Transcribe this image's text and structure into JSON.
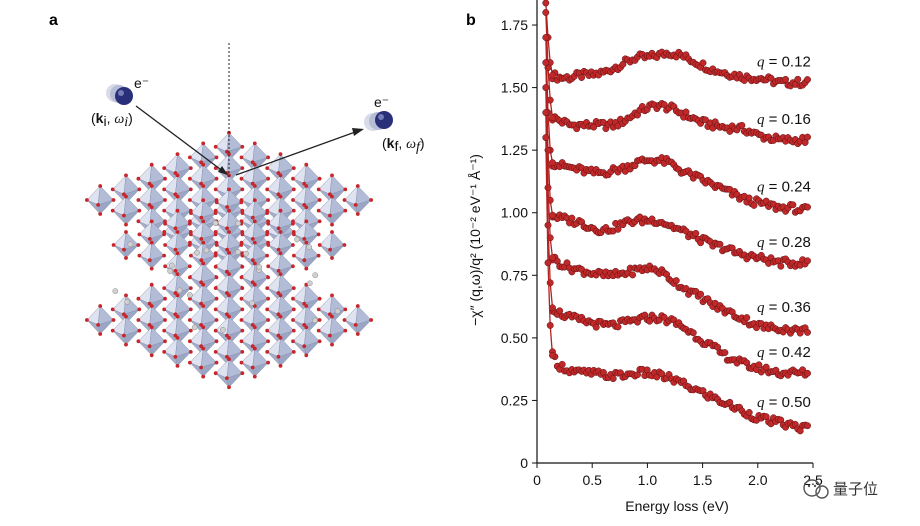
{
  "panels": {
    "a": "a",
    "b": "b"
  },
  "illustration": {
    "electron_in": "e⁻",
    "electron_out": "e⁻",
    "k_in": "k",
    "k_in_sub": "i",
    "w_in": "ω",
    "w_in_sub": "i",
    "k_out": "k",
    "k_out_sub": "f",
    "w_out": "ω",
    "w_out_sub": "f",
    "octahedron_color": "#9ba6c4",
    "oxygen_color": "#c8262a",
    "electron_color": "#2a2f7a"
  },
  "watermark": "量子位",
  "chart_data": {
    "type": "scatter",
    "xlabel": "Energy loss (eV)",
    "ylabel": "−χ″ (q,ω)/q² (10⁻² eV⁻¹ Å⁻¹)",
    "xlim": [
      0,
      2.5
    ],
    "ylim": [
      0,
      1.85
    ],
    "xticks": [
      0,
      0.5,
      1.0,
      1.5,
      2.0,
      2.5
    ],
    "xtick_labels": [
      "0",
      "0.5",
      "1.0",
      "1.5",
      "2.0",
      "2.5"
    ],
    "yticks": [
      0,
      0.25,
      0.5,
      0.75,
      1.0,
      1.25,
      1.5,
      1.75
    ],
    "ytick_labels": [
      "0",
      "0.25",
      "0.50",
      "0.75",
      "1.00",
      "1.25",
      "1.50",
      "1.75"
    ],
    "marker_color": "#c0282a",
    "line_color": "#b32020",
    "series": [
      {
        "name": "q = 0.12",
        "label": "0.12",
        "points": [
          [
            0.08,
            1.88
          ],
          [
            0.1,
            1.7
          ],
          [
            0.12,
            1.6
          ],
          [
            0.14,
            1.55
          ],
          [
            0.2,
            1.54
          ],
          [
            0.3,
            1.54
          ],
          [
            0.4,
            1.55
          ],
          [
            0.5,
            1.55
          ],
          [
            0.6,
            1.56
          ],
          [
            0.7,
            1.58
          ],
          [
            0.8,
            1.6
          ],
          [
            0.9,
            1.62
          ],
          [
            1.0,
            1.62
          ],
          [
            1.1,
            1.63
          ],
          [
            1.2,
            1.64
          ],
          [
            1.3,
            1.63
          ],
          [
            1.4,
            1.61
          ],
          [
            1.5,
            1.59
          ],
          [
            1.6,
            1.57
          ],
          [
            1.7,
            1.56
          ],
          [
            1.8,
            1.55
          ],
          [
            1.9,
            1.54
          ],
          [
            2.0,
            1.54
          ],
          [
            2.1,
            1.53
          ],
          [
            2.2,
            1.52
          ],
          [
            2.3,
            1.52
          ],
          [
            2.4,
            1.52
          ],
          [
            2.46,
            1.52
          ]
        ]
      },
      {
        "name": "q = 0.16",
        "label": "0.16",
        "points": [
          [
            0.08,
            1.8
          ],
          [
            0.1,
            1.58
          ],
          [
            0.12,
            1.45
          ],
          [
            0.14,
            1.38
          ],
          [
            0.2,
            1.37
          ],
          [
            0.3,
            1.35
          ],
          [
            0.4,
            1.35
          ],
          [
            0.5,
            1.35
          ],
          [
            0.6,
            1.35
          ],
          [
            0.7,
            1.35
          ],
          [
            0.8,
            1.37
          ],
          [
            0.9,
            1.4
          ],
          [
            1.0,
            1.42
          ],
          [
            1.1,
            1.43
          ],
          [
            1.2,
            1.42
          ],
          [
            1.3,
            1.4
          ],
          [
            1.4,
            1.38
          ],
          [
            1.5,
            1.36
          ],
          [
            1.6,
            1.35
          ],
          [
            1.7,
            1.34
          ],
          [
            1.8,
            1.34
          ],
          [
            1.9,
            1.33
          ],
          [
            2.0,
            1.31
          ],
          [
            2.1,
            1.3
          ],
          [
            2.2,
            1.29
          ],
          [
            2.3,
            1.29
          ],
          [
            2.4,
            1.29
          ],
          [
            2.46,
            1.29
          ]
        ]
      },
      {
        "name": "q = 0.24",
        "label": "0.24",
        "points": [
          [
            0.08,
            1.7
          ],
          [
            0.1,
            1.4
          ],
          [
            0.12,
            1.25
          ],
          [
            0.14,
            1.2
          ],
          [
            0.2,
            1.19
          ],
          [
            0.3,
            1.18
          ],
          [
            0.4,
            1.17
          ],
          [
            0.5,
            1.16
          ],
          [
            0.6,
            1.16
          ],
          [
            0.7,
            1.17
          ],
          [
            0.8,
            1.18
          ],
          [
            0.9,
            1.2
          ],
          [
            1.0,
            1.21
          ],
          [
            1.1,
            1.21
          ],
          [
            1.2,
            1.2
          ],
          [
            1.3,
            1.17
          ],
          [
            1.4,
            1.15
          ],
          [
            1.5,
            1.13
          ],
          [
            1.6,
            1.11
          ],
          [
            1.7,
            1.09
          ],
          [
            1.8,
            1.07
          ],
          [
            1.9,
            1.05
          ],
          [
            2.0,
            1.04
          ],
          [
            2.1,
            1.03
          ],
          [
            2.2,
            1.02
          ],
          [
            2.3,
            1.02
          ],
          [
            2.4,
            1.01
          ],
          [
            2.46,
            1.01
          ]
        ]
      },
      {
        "name": "q = 0.28",
        "label": "0.28",
        "points": [
          [
            0.08,
            1.6
          ],
          [
            0.1,
            1.25
          ],
          [
            0.12,
            1.05
          ],
          [
            0.14,
            0.99
          ],
          [
            0.2,
            0.98
          ],
          [
            0.3,
            0.97
          ],
          [
            0.4,
            0.96
          ],
          [
            0.5,
            0.94
          ],
          [
            0.6,
            0.93
          ],
          [
            0.7,
            0.94
          ],
          [
            0.8,
            0.96
          ],
          [
            0.9,
            0.97
          ],
          [
            1.0,
            0.97
          ],
          [
            1.1,
            0.97
          ],
          [
            1.2,
            0.95
          ],
          [
            1.3,
            0.93
          ],
          [
            1.4,
            0.91
          ],
          [
            1.5,
            0.89
          ],
          [
            1.6,
            0.87
          ],
          [
            1.7,
            0.86
          ],
          [
            1.8,
            0.84
          ],
          [
            1.9,
            0.83
          ],
          [
            2.0,
            0.82
          ],
          [
            2.1,
            0.81
          ],
          [
            2.2,
            0.8
          ],
          [
            2.3,
            0.8
          ],
          [
            2.4,
            0.8
          ],
          [
            2.46,
            0.8
          ]
        ]
      },
      {
        "name": "q = 0.36",
        "label": "0.36",
        "points": [
          [
            0.08,
            1.5
          ],
          [
            0.1,
            1.1
          ],
          [
            0.12,
            0.9
          ],
          [
            0.14,
            0.82
          ],
          [
            0.2,
            0.8
          ],
          [
            0.3,
            0.78
          ],
          [
            0.4,
            0.77
          ],
          [
            0.5,
            0.76
          ],
          [
            0.6,
            0.75
          ],
          [
            0.7,
            0.75
          ],
          [
            0.8,
            0.76
          ],
          [
            0.9,
            0.77
          ],
          [
            1.0,
            0.78
          ],
          [
            1.1,
            0.77
          ],
          [
            1.2,
            0.74
          ],
          [
            1.3,
            0.71
          ],
          [
            1.4,
            0.68
          ],
          [
            1.5,
            0.66
          ],
          [
            1.6,
            0.63
          ],
          [
            1.7,
            0.61
          ],
          [
            1.8,
            0.59
          ],
          [
            1.9,
            0.57
          ],
          [
            2.0,
            0.55
          ],
          [
            2.1,
            0.54
          ],
          [
            2.2,
            0.54
          ],
          [
            2.3,
            0.53
          ],
          [
            2.4,
            0.53
          ],
          [
            2.46,
            0.53
          ]
        ]
      },
      {
        "name": "q = 0.42",
        "label": "0.42",
        "points": [
          [
            0.08,
            1.4
          ],
          [
            0.1,
            0.95
          ],
          [
            0.12,
            0.72
          ],
          [
            0.14,
            0.62
          ],
          [
            0.2,
            0.6
          ],
          [
            0.3,
            0.58
          ],
          [
            0.4,
            0.57
          ],
          [
            0.5,
            0.56
          ],
          [
            0.6,
            0.55
          ],
          [
            0.7,
            0.55
          ],
          [
            0.8,
            0.56
          ],
          [
            0.9,
            0.57
          ],
          [
            1.0,
            0.58
          ],
          [
            1.1,
            0.58
          ],
          [
            1.2,
            0.57
          ],
          [
            1.3,
            0.55
          ],
          [
            1.4,
            0.52
          ],
          [
            1.5,
            0.49
          ],
          [
            1.6,
            0.46
          ],
          [
            1.7,
            0.43
          ],
          [
            1.8,
            0.41
          ],
          [
            1.9,
            0.39
          ],
          [
            2.0,
            0.38
          ],
          [
            2.1,
            0.37
          ],
          [
            2.2,
            0.36
          ],
          [
            2.3,
            0.36
          ],
          [
            2.4,
            0.36
          ],
          [
            2.46,
            0.36
          ]
        ]
      },
      {
        "name": "q = 0.50",
        "label": "0.50",
        "points": [
          [
            0.08,
            1.3
          ],
          [
            0.1,
            0.8
          ],
          [
            0.12,
            0.55
          ],
          [
            0.14,
            0.43
          ],
          [
            0.2,
            0.39
          ],
          [
            0.3,
            0.37
          ],
          [
            0.4,
            0.36
          ],
          [
            0.5,
            0.36
          ],
          [
            0.6,
            0.35
          ],
          [
            0.7,
            0.35
          ],
          [
            0.8,
            0.35
          ],
          [
            0.9,
            0.36
          ],
          [
            1.0,
            0.36
          ],
          [
            1.1,
            0.35
          ],
          [
            1.2,
            0.34
          ],
          [
            1.3,
            0.32
          ],
          [
            1.4,
            0.3
          ],
          [
            1.5,
            0.28
          ],
          [
            1.6,
            0.26
          ],
          [
            1.7,
            0.24
          ],
          [
            1.8,
            0.22
          ],
          [
            1.9,
            0.2
          ],
          [
            2.0,
            0.18
          ],
          [
            2.1,
            0.17
          ],
          [
            2.2,
            0.16
          ],
          [
            2.3,
            0.15
          ],
          [
            2.4,
            0.14
          ],
          [
            2.46,
            0.14
          ]
        ]
      }
    ]
  }
}
